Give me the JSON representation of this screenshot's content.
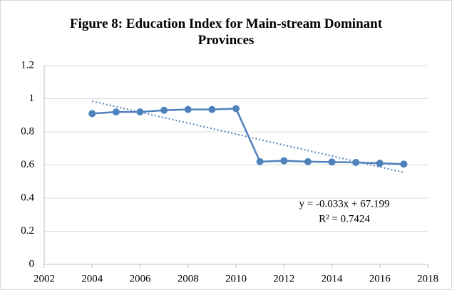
{
  "chart_data": {
    "type": "line",
    "title": "Figure 8: Education Index for Main-stream Dominant Provinces",
    "x": [
      2004,
      2005,
      2006,
      2007,
      2008,
      2009,
      2010,
      2011,
      2012,
      2013,
      2014,
      2015,
      2016,
      2017
    ],
    "series": [
      {
        "name": "Education Index",
        "color": "#4f81bd",
        "values": [
          0.91,
          0.92,
          0.92,
          0.93,
          0.935,
          0.935,
          0.94,
          0.62,
          0.625,
          0.62,
          0.618,
          0.615,
          0.61,
          0.605
        ]
      }
    ],
    "trendline": {
      "x": [
        2004,
        2017
      ],
      "values": [
        0.985,
        0.555
      ],
      "color": "#4f81bd"
    },
    "annotations": [
      "y = -0.033x + 67.199",
      "R² = 0.7424"
    ],
    "xlim": [
      2002,
      2018
    ],
    "xticks": [
      2002,
      2004,
      2006,
      2008,
      2010,
      2012,
      2014,
      2016,
      2018
    ],
    "ylim": [
      0,
      1.2
    ],
    "yticks": [
      0,
      0.2,
      0.4,
      0.6,
      0.8,
      1,
      1.2
    ],
    "grid": true
  }
}
